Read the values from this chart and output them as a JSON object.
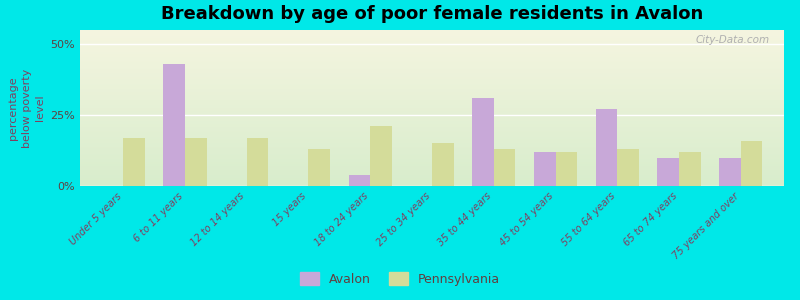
{
  "title": "Breakdown by age of poor female residents in Avalon",
  "ylabel": "percentage\nbelow poverty\nlevel",
  "categories": [
    "Under 5 years",
    "6 to 11 years",
    "12 to 14 years",
    "15 years",
    "18 to 24 years",
    "25 to 34 years",
    "35 to 44 years",
    "45 to 54 years",
    "55 to 64 years",
    "65 to 74 years",
    "75 years and over"
  ],
  "avalon_values": [
    0,
    43,
    0,
    0,
    4,
    0,
    31,
    12,
    27,
    10,
    10
  ],
  "pennsylvania_values": [
    17,
    17,
    17,
    13,
    21,
    15,
    13,
    12,
    13,
    12,
    16
  ],
  "avalon_color": "#c8a8d8",
  "pennsylvania_color": "#d4dc9a",
  "bg_top_color": "#f5f5e0",
  "bg_bottom_color": "#d8edcc",
  "figure_bg_color": "#00e8e8",
  "ylim": [
    0,
    55
  ],
  "yticks": [
    0,
    25,
    50
  ],
  "ytick_labels": [
    "0%",
    "25%",
    "50%"
  ],
  "title_fontsize": 13,
  "axis_label_fontsize": 8,
  "tick_fontsize": 7,
  "bar_width": 0.35,
  "watermark": "City-Data.com"
}
